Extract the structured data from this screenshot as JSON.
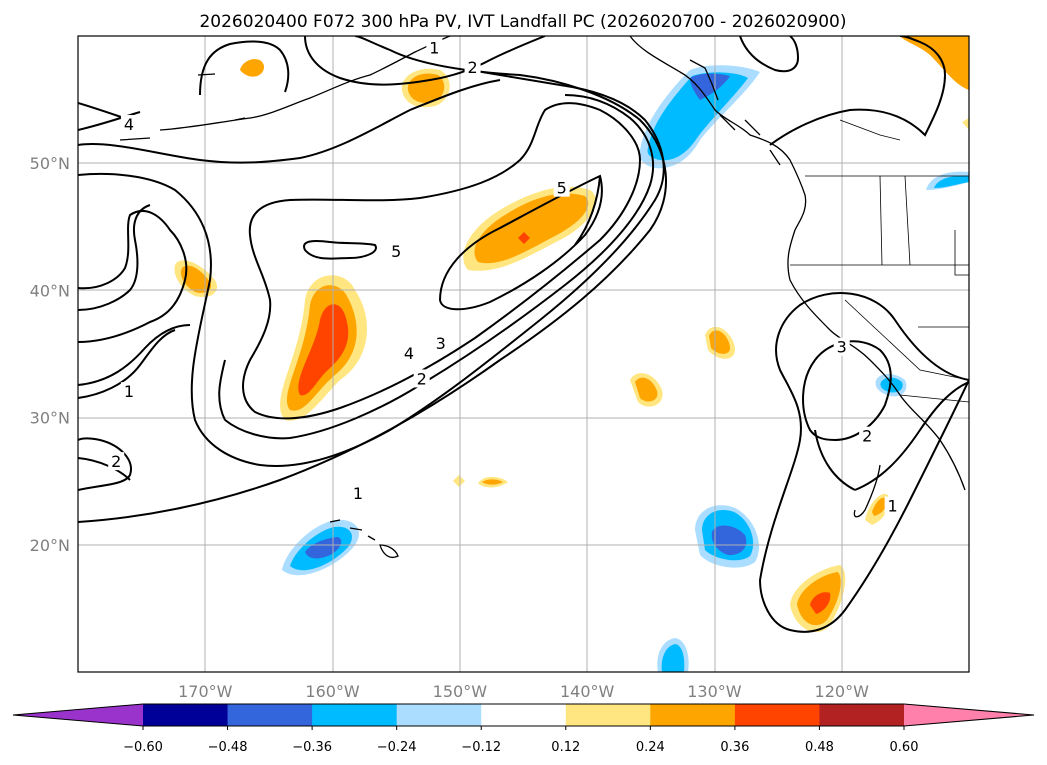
{
  "chart_data": {
    "type": "filled-contour-map",
    "title": "2026020400 F072 300 hPa PV, IVT Landfall PC (2026020700 - 2026020900)",
    "extent": {
      "lon": [
        -180,
        -110
      ],
      "lat": [
        10,
        60
      ]
    },
    "x_ticks": [
      {
        "value": -170,
        "label": "170°W"
      },
      {
        "value": -160,
        "label": "160°W"
      },
      {
        "value": -150,
        "label": "150°W"
      },
      {
        "value": -140,
        "label": "140°W"
      },
      {
        "value": -130,
        "label": "130°W"
      },
      {
        "value": -120,
        "label": "120°W"
      }
    ],
    "y_ticks": [
      {
        "value": 20,
        "label": "20°N"
      },
      {
        "value": 30,
        "label": "30°N"
      },
      {
        "value": 40,
        "label": "40°N"
      },
      {
        "value": 50,
        "label": "50°N"
      }
    ],
    "colorbar": {
      "levels": [
        -0.6,
        -0.48,
        -0.36,
        -0.24,
        -0.12,
        0.12,
        0.24,
        0.36,
        0.48,
        0.6
      ],
      "tick_labels": [
        "−0.60",
        "−0.48",
        "−0.36",
        "−0.24",
        "−0.12",
        "0.12",
        "0.24",
        "0.36",
        "0.48",
        "0.60"
      ],
      "colors": [
        "#9933cc",
        "#000099",
        "#3366dd",
        "#00bbff",
        "#aaddff",
        "#ffffff",
        "#ffe680",
        "#ffa500",
        "#ff4400",
        "#b22222",
        "#ff80aa"
      ],
      "extend": "both"
    },
    "pv_contour_labels": [
      {
        "value": "1",
        "lon": -152,
        "lat": 59
      },
      {
        "value": "2",
        "lon": -149,
        "lat": 57.5
      },
      {
        "value": "4",
        "lon": -176,
        "lat": 53
      },
      {
        "value": "5",
        "lon": -142,
        "lat": 48
      },
      {
        "value": "5",
        "lon": -155,
        "lat": 43
      },
      {
        "value": "4",
        "lon": -154,
        "lat": 35
      },
      {
        "value": "3",
        "lon": -151.5,
        "lat": 35.8
      },
      {
        "value": "2",
        "lon": -153,
        "lat": 33
      },
      {
        "value": "1",
        "lon": -176,
        "lat": 32
      },
      {
        "value": "2",
        "lon": -177,
        "lat": 26.5
      },
      {
        "value": "1",
        "lon": -158,
        "lat": 24
      },
      {
        "value": "3",
        "lon": -120,
        "lat": 35.5
      },
      {
        "value": "2",
        "lon": -118,
        "lat": 28.5
      },
      {
        "value": "1",
        "lon": -116,
        "lat": 23
      }
    ],
    "ivt_pc_features": [
      {
        "name": "positive-anomaly-subtropical-ridge",
        "sign": "+",
        "max_level": 0.36,
        "lon": -160,
        "lat": 35
      },
      {
        "name": "positive-anomaly-central-pacific",
        "sign": "+",
        "max_level": 0.36,
        "lon": -145,
        "lat": 44
      },
      {
        "name": "positive-anomaly-bering-sea",
        "sign": "+",
        "max_level": 0.24,
        "lon": -156,
        "lat": 56
      },
      {
        "name": "positive-anomaly-baja",
        "sign": "+",
        "max_level": 0.36,
        "lon": -122,
        "lat": 15
      },
      {
        "name": "negative-anomaly-gulf-of-alaska",
        "sign": "-",
        "max_level": -0.36,
        "lon": -133,
        "lat": 56
      },
      {
        "name": "negative-anomaly-hawaii",
        "sign": "-",
        "max_level": -0.36,
        "lon": -160,
        "lat": 19.5
      },
      {
        "name": "negative-anomaly-subtropical-east",
        "sign": "-",
        "max_level": -0.36,
        "lon": -129,
        "lat": 20.5
      }
    ]
  }
}
